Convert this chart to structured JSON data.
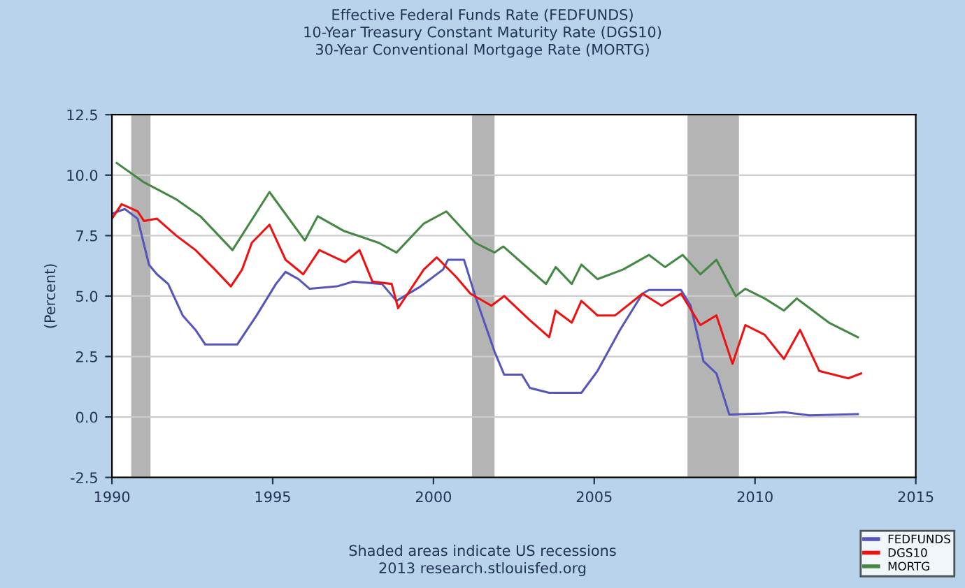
{
  "chart_data": {
    "type": "line",
    "title": "Effective Federal Funds Rate (FEDFUNDS)\n10-Year Treasury Constant Maturity Rate (DGS10)\n30-Year Conventional Mortgage Rate (MORTG)",
    "ylabel": "(Percent)",
    "xlim": [
      1990,
      2015
    ],
    "xticks": [
      1990,
      1995,
      2000,
      2005,
      2010,
      2015
    ],
    "ylim": [
      -2.5,
      12.5
    ],
    "yticks": [
      {
        "value": -2.5,
        "label": "-2.5"
      },
      {
        "value": 0,
        "label": "0.0"
      },
      {
        "value": 2.5,
        "label": "2.5"
      },
      {
        "value": 5,
        "label": "5.0"
      },
      {
        "value": 7.5,
        "label": "7.5"
      },
      {
        "value": 10,
        "label": "10.0"
      },
      {
        "value": 12.5,
        "label": "12.5"
      }
    ],
    "grid": "y",
    "legend": "bottom right",
    "line_style": "solid",
    "bands": [
      {
        "axis": "x",
        "from": 1990.6,
        "to": 1991.2,
        "color": "#b4b4b4"
      },
      {
        "axis": "x",
        "from": 2001.2,
        "to": 2001.9,
        "color": "#b4b4b4"
      },
      {
        "axis": "x",
        "from": 2007.9,
        "to": 2009.5,
        "color": "#b4b4b4"
      }
    ],
    "annotations": [
      "Shaded areas indicate US recessions\n2013 research.stlouisfed.org"
    ],
    "series": [
      {
        "name": "FEDFUNDS",
        "color": "#5555bb",
        "x": [
          1990,
          1990.4,
          1990.8,
          1991.15,
          1991.4,
          1991.75,
          1992.2,
          1992.6,
          1992.9,
          1993.9,
          1994.5,
          1995.1,
          1995.4,
          1995.8,
          1996.15,
          1997,
          1997.5,
          1998.4,
          1998.85,
          1999.6,
          2000.3,
          2000.45,
          2000.95,
          2001.3,
          2001.9,
          2002.2,
          2002.75,
          2003,
          2003.6,
          2004.6,
          2005.1,
          2005.8,
          2006.5,
          2006.7,
          2007.7,
          2008,
          2008.4,
          2008.8,
          2009.2,
          2010.3,
          2010.9,
          2011.7,
          2013.2
        ],
        "values": [
          8.4,
          8.6,
          8.2,
          6.3,
          5.9,
          5.5,
          4.2,
          3.6,
          3.0,
          3.0,
          4.2,
          5.5,
          6.0,
          5.7,
          5.3,
          5.4,
          5.6,
          5.5,
          4.8,
          5.4,
          6.1,
          6.5,
          6.5,
          5.0,
          2.7,
          1.75,
          1.75,
          1.2,
          1.0,
          1.0,
          1.9,
          3.6,
          5.1,
          5.25,
          5.25,
          4.6,
          2.3,
          1.8,
          0.1,
          0.15,
          0.2,
          0.07,
          0.12
        ]
      },
      {
        "name": "DGS10",
        "color": "#ee1111",
        "x": [
          1990,
          1990.3,
          1990.8,
          1991,
          1991.4,
          1992,
          1992.6,
          1993.2,
          1993.7,
          1994.05,
          1994.35,
          1994.9,
          1995.4,
          1995.95,
          1996.45,
          1997.25,
          1997.7,
          1998.1,
          1998.7,
          1998.9,
          1999.7,
          2000.1,
          2000.7,
          2001.15,
          2001.8,
          2002.2,
          2003.0,
          2003.6,
          2003.8,
          2004.3,
          2004.6,
          2005.1,
          2005.65,
          2006.5,
          2007.1,
          2007.7,
          2008.3,
          2008.8,
          2009.3,
          2009.7,
          2010.3,
          2010.9,
          2011.4,
          2012.0,
          2012.9,
          2013.3
        ],
        "values": [
          8.2,
          8.8,
          8.5,
          8.1,
          8.2,
          7.5,
          6.9,
          6.1,
          5.4,
          6.1,
          7.2,
          7.95,
          6.5,
          5.9,
          6.9,
          6.4,
          6.9,
          5.6,
          5.5,
          4.5,
          6.1,
          6.6,
          5.8,
          5.1,
          4.6,
          5.0,
          4.0,
          3.3,
          4.4,
          3.9,
          4.8,
          4.2,
          4.2,
          5.1,
          4.6,
          5.1,
          3.8,
          4.2,
          2.2,
          3.8,
          3.4,
          2.4,
          3.6,
          1.9,
          1.6,
          1.8
        ]
      },
      {
        "name": "MORTG",
        "color": "#448844",
        "x": [
          1990.15,
          1991,
          1992,
          1992.75,
          1993.75,
          1994.9,
          1996,
          1996.4,
          1997.2,
          1998.3,
          1998.85,
          1999.7,
          2000.4,
          2001.3,
          2001.9,
          2002.17,
          2003.5,
          2003.8,
          2004.3,
          2004.6,
          2005.1,
          2005.9,
          2006.7,
          2007.2,
          2007.75,
          2008.3,
          2008.8,
          2009.4,
          2009.7,
          2010.3,
          2010.9,
          2011.3,
          2012.3,
          2013.2
        ],
        "values": [
          10.5,
          9.7,
          9.0,
          8.3,
          6.9,
          9.3,
          7.3,
          8.3,
          7.7,
          7.2,
          6.8,
          8.0,
          8.5,
          7.2,
          6.8,
          7.05,
          5.5,
          6.2,
          5.5,
          6.3,
          5.7,
          6.1,
          6.7,
          6.2,
          6.7,
          5.9,
          6.5,
          5.0,
          5.3,
          4.9,
          4.4,
          4.9,
          3.9,
          3.3
        ]
      }
    ]
  }
}
